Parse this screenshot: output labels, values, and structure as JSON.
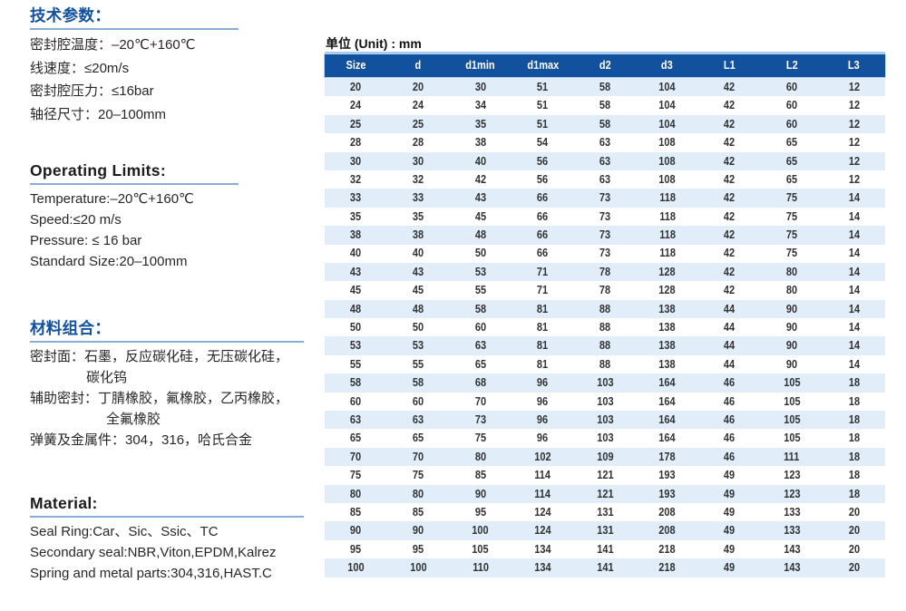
{
  "colors": {
    "accent_blue": "#11519e",
    "underline_blue": "#88afd9",
    "table_header_bg": "#11519e",
    "table_header_text": "#ffffff",
    "row_alt_bg": "#e1eef9",
    "row_bg": "#ffffff",
    "body_text": "#272727",
    "cell_text": "#333333"
  },
  "left_panel": {
    "sections": [
      {
        "id": "tech",
        "title": "技术参数：",
        "title_color": "blue",
        "lines": [
          {
            "text": "密封腔温度：–20℃+160℃"
          },
          {
            "text": "线速度：≤20m/s"
          },
          {
            "text": "密封腔压力：≤16bar"
          },
          {
            "text": "轴径尺寸：20–100mm"
          }
        ]
      },
      {
        "id": "operating",
        "title": "Operating Limits:",
        "title_color": "black",
        "lines": [
          {
            "text": "Temperature:–20℃+160℃"
          },
          {
            "text": "Speed:≤20 m/s"
          },
          {
            "text": "Pressure: ≤ 16 bar"
          },
          {
            "text": "Standard Size:20–100mm"
          }
        ]
      },
      {
        "id": "materials-cn",
        "title": "材料组合：",
        "title_color": "blue",
        "lines": [
          {
            "text": "密封面：石墨，反应碳化硅，无压碳化硅，"
          },
          {
            "text": "碳化钨",
            "indent": 1
          },
          {
            "text": "辅助密封：丁腈橡胶，氟橡胶，乙丙橡胶，"
          },
          {
            "text": "全氟橡胶",
            "indent": 2
          },
          {
            "text": "弹簧及金属件：304，316，哈氏合金"
          }
        ]
      },
      {
        "id": "material-en",
        "title": "Material:",
        "title_color": "black",
        "lines": [
          {
            "text": "Seal Ring:Car、Sic、Ssic、TC"
          },
          {
            "text": "Secondary seal:NBR,Viton,EPDM,Kalrez"
          },
          {
            "text": "Spring and metal parts:304,316,HAST.C"
          }
        ]
      }
    ]
  },
  "table": {
    "unit_label": "单位 (Unit) : mm",
    "columns": [
      "Size",
      "d",
      "d1min",
      "d1max",
      "d2",
      "d3",
      "L1",
      "L2",
      "L3"
    ],
    "rows": [
      [
        20,
        20,
        30,
        51,
        58,
        104,
        42,
        60,
        12
      ],
      [
        24,
        24,
        34,
        51,
        58,
        104,
        42,
        60,
        12
      ],
      [
        25,
        25,
        35,
        51,
        58,
        104,
        42,
        60,
        12
      ],
      [
        28,
        28,
        38,
        54,
        63,
        108,
        42,
        65,
        12
      ],
      [
        30,
        30,
        40,
        56,
        63,
        108,
        42,
        65,
        12
      ],
      [
        32,
        32,
        42,
        56,
        63,
        108,
        42,
        65,
        12
      ],
      [
        33,
        33,
        43,
        66,
        73,
        118,
        42,
        75,
        14
      ],
      [
        35,
        35,
        45,
        66,
        73,
        118,
        42,
        75,
        14
      ],
      [
        38,
        38,
        48,
        66,
        73,
        118,
        42,
        75,
        14
      ],
      [
        40,
        40,
        50,
        66,
        73,
        118,
        42,
        75,
        14
      ],
      [
        43,
        43,
        53,
        71,
        78,
        128,
        42,
        80,
        14
      ],
      [
        45,
        45,
        55,
        71,
        78,
        128,
        42,
        80,
        14
      ],
      [
        48,
        48,
        58,
        81,
        88,
        138,
        44,
        90,
        14
      ],
      [
        50,
        50,
        60,
        81,
        88,
        138,
        44,
        90,
        14
      ],
      [
        53,
        53,
        63,
        81,
        88,
        138,
        44,
        90,
        14
      ],
      [
        55,
        55,
        65,
        81,
        88,
        138,
        44,
        90,
        14
      ],
      [
        58,
        58,
        68,
        96,
        103,
        164,
        46,
        105,
        18
      ],
      [
        60,
        60,
        70,
        96,
        103,
        164,
        46,
        105,
        18
      ],
      [
        63,
        63,
        73,
        96,
        103,
        164,
        46,
        105,
        18
      ],
      [
        65,
        65,
        75,
        96,
        103,
        164,
        46,
        105,
        18
      ],
      [
        70,
        70,
        80,
        102,
        109,
        178,
        46,
        111,
        18
      ],
      [
        75,
        75,
        85,
        114,
        121,
        193,
        49,
        123,
        18
      ],
      [
        80,
        80,
        90,
        114,
        121,
        193,
        49,
        123,
        18
      ],
      [
        85,
        85,
        95,
        124,
        131,
        208,
        49,
        133,
        20
      ],
      [
        90,
        90,
        100,
        124,
        131,
        208,
        49,
        133,
        20
      ],
      [
        95,
        95,
        105,
        134,
        141,
        218,
        49,
        143,
        20
      ],
      [
        100,
        100,
        110,
        134,
        141,
        218,
        49,
        143,
        20
      ]
    ]
  }
}
